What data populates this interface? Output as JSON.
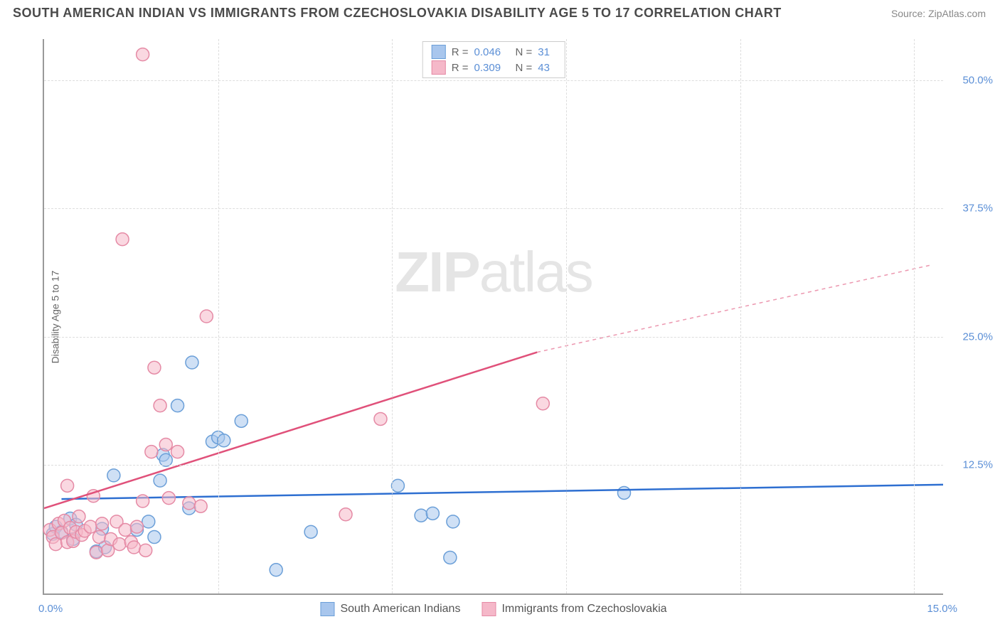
{
  "header": {
    "title": "SOUTH AMERICAN INDIAN VS IMMIGRANTS FROM CZECHOSLOVAKIA DISABILITY AGE 5 TO 17 CORRELATION CHART",
    "source": "Source: ZipAtlas.com"
  },
  "y_axis": {
    "label": "Disability Age 5 to 17",
    "ticks": [
      {
        "value": 12.5,
        "label": "12.5%"
      },
      {
        "value": 25.0,
        "label": "25.0%"
      },
      {
        "value": 37.5,
        "label": "37.5%"
      },
      {
        "value": 50.0,
        "label": "50.0%"
      }
    ],
    "min": 0,
    "max": 54
  },
  "x_axis": {
    "min": 0,
    "max": 15.5,
    "tick_left": "0.0%",
    "tick_right": "15.0%",
    "gridlines": [
      3,
      6,
      9,
      12,
      15
    ]
  },
  "series": [
    {
      "name": "South American Indians",
      "color_fill": "#a8c6ed",
      "color_stroke": "#6b9fd8",
      "R": "0.046",
      "N": "31",
      "trend_color": "#2e6fd1",
      "trend_p1": {
        "x": 0.3,
        "y": 9.2
      },
      "trend_p2": {
        "x": 15.5,
        "y": 10.6
      },
      "trend_dash_after": 15.5,
      "points": [
        {
          "x": 0.15,
          "y": 5.8
        },
        {
          "x": 0.2,
          "y": 6.5
        },
        {
          "x": 0.3,
          "y": 6.0
        },
        {
          "x": 0.45,
          "y": 7.3
        },
        {
          "x": 0.5,
          "y": 5.3
        },
        {
          "x": 0.55,
          "y": 6.7
        },
        {
          "x": 0.9,
          "y": 4.1
        },
        {
          "x": 1.0,
          "y": 6.3
        },
        {
          "x": 1.05,
          "y": 4.5
        },
        {
          "x": 1.2,
          "y": 11.5
        },
        {
          "x": 1.6,
          "y": 6.2
        },
        {
          "x": 1.8,
          "y": 7.0
        },
        {
          "x": 1.9,
          "y": 5.5
        },
        {
          "x": 2.0,
          "y": 11.0
        },
        {
          "x": 2.05,
          "y": 13.5
        },
        {
          "x": 2.1,
          "y": 13.0
        },
        {
          "x": 2.3,
          "y": 18.3
        },
        {
          "x": 2.5,
          "y": 8.3
        },
        {
          "x": 2.55,
          "y": 22.5
        },
        {
          "x": 2.9,
          "y": 14.8
        },
        {
          "x": 3.0,
          "y": 15.2
        },
        {
          "x": 3.1,
          "y": 14.9
        },
        {
          "x": 3.4,
          "y": 16.8
        },
        {
          "x": 4.0,
          "y": 2.3
        },
        {
          "x": 4.6,
          "y": 6.0
        },
        {
          "x": 6.1,
          "y": 10.5
        },
        {
          "x": 6.5,
          "y": 7.6
        },
        {
          "x": 6.7,
          "y": 7.8
        },
        {
          "x": 7.0,
          "y": 3.5
        },
        {
          "x": 7.05,
          "y": 7.0
        },
        {
          "x": 10.0,
          "y": 9.8
        }
      ]
    },
    {
      "name": "Immigrants from Czechoslovakia",
      "color_fill": "#f5b8c9",
      "color_stroke": "#e58aa5",
      "R": "0.309",
      "N": "43",
      "trend_color": "#e0517a",
      "trend_p1": {
        "x": 0.0,
        "y": 8.3
      },
      "trend_p2": {
        "x": 8.5,
        "y": 23.5
      },
      "trend_dash_after": 8.5,
      "trend_dash_end": {
        "x": 15.3,
        "y": 32.0
      },
      "points": [
        {
          "x": 0.1,
          "y": 6.2
        },
        {
          "x": 0.15,
          "y": 5.5
        },
        {
          "x": 0.2,
          "y": 4.8
        },
        {
          "x": 0.25,
          "y": 6.8
        },
        {
          "x": 0.3,
          "y": 5.9
        },
        {
          "x": 0.35,
          "y": 7.1
        },
        {
          "x": 0.4,
          "y": 5.0
        },
        {
          "x": 0.4,
          "y": 10.5
        },
        {
          "x": 0.45,
          "y": 6.4
        },
        {
          "x": 0.5,
          "y": 5.1
        },
        {
          "x": 0.55,
          "y": 6.0
        },
        {
          "x": 0.6,
          "y": 7.5
        },
        {
          "x": 0.65,
          "y": 5.7
        },
        {
          "x": 0.7,
          "y": 6.1
        },
        {
          "x": 0.8,
          "y": 6.5
        },
        {
          "x": 0.85,
          "y": 9.5
        },
        {
          "x": 0.9,
          "y": 4.0
        },
        {
          "x": 0.95,
          "y": 5.5
        },
        {
          "x": 1.0,
          "y": 6.8
        },
        {
          "x": 1.1,
          "y": 4.2
        },
        {
          "x": 1.15,
          "y": 5.3
        },
        {
          "x": 1.25,
          "y": 7.0
        },
        {
          "x": 1.3,
          "y": 4.8
        },
        {
          "x": 1.35,
          "y": 34.5
        },
        {
          "x": 1.4,
          "y": 6.2
        },
        {
          "x": 1.5,
          "y": 5.0
        },
        {
          "x": 1.55,
          "y": 4.5
        },
        {
          "x": 1.6,
          "y": 6.5
        },
        {
          "x": 1.7,
          "y": 9.0
        },
        {
          "x": 1.7,
          "y": 52.5
        },
        {
          "x": 1.75,
          "y": 4.2
        },
        {
          "x": 1.85,
          "y": 13.8
        },
        {
          "x": 1.9,
          "y": 22.0
        },
        {
          "x": 2.0,
          "y": 18.3
        },
        {
          "x": 2.1,
          "y": 14.5
        },
        {
          "x": 2.15,
          "y": 9.3
        },
        {
          "x": 2.3,
          "y": 13.8
        },
        {
          "x": 2.5,
          "y": 8.8
        },
        {
          "x": 2.7,
          "y": 8.5
        },
        {
          "x": 2.8,
          "y": 27.0
        },
        {
          "x": 5.2,
          "y": 7.7
        },
        {
          "x": 5.8,
          "y": 17.0
        },
        {
          "x": 8.6,
          "y": 18.5
        }
      ]
    }
  ],
  "legend_top": [
    {
      "swatch_fill": "#a8c6ed",
      "swatch_stroke": "#6b9fd8",
      "R_label": "R =",
      "R": "0.046",
      "N_label": "N =",
      "N": "31"
    },
    {
      "swatch_fill": "#f5b8c9",
      "swatch_stroke": "#e58aa5",
      "R_label": "R =",
      "R": "0.309",
      "N_label": "N =",
      "N": "43"
    }
  ],
  "legend_bottom": [
    {
      "swatch_fill": "#a8c6ed",
      "swatch_stroke": "#6b9fd8",
      "label": "South American Indians"
    },
    {
      "swatch_fill": "#f5b8c9",
      "swatch_stroke": "#e58aa5",
      "label": "Immigrants from Czechoslovakia"
    }
  ],
  "watermark": {
    "bold": "ZIP",
    "light": "atlas"
  }
}
